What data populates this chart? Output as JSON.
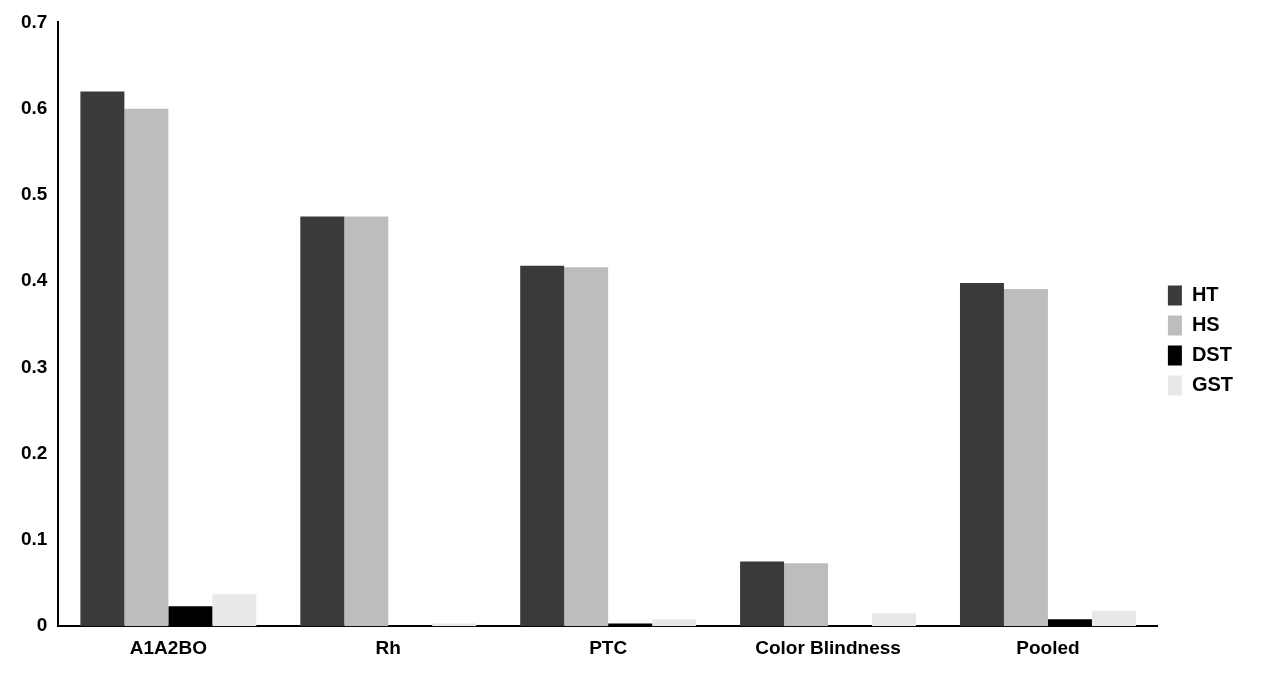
{
  "chart_data": {
    "type": "bar",
    "categories": [
      "A1A2BO",
      "Rh",
      "PTC",
      "Color Blindness",
      "Pooled"
    ],
    "series": [
      {
        "name": "HT",
        "color": "#3a3a3a",
        "values": [
          0.62,
          0.475,
          0.418,
          0.075,
          0.398
        ]
      },
      {
        "name": "HS",
        "color": "#bdbdbd",
        "values": [
          0.6,
          0.475,
          0.416,
          0.073,
          0.391
        ]
      },
      {
        "name": "DST",
        "color": "#000000",
        "values": [
          0.023,
          null,
          0.003,
          null,
          0.008
        ]
      },
      {
        "name": "GST",
        "color": "#e8e8e8",
        "values": [
          0.037,
          0.003,
          0.008,
          0.015,
          0.018
        ]
      }
    ],
    "ylim": [
      0,
      0.7
    ],
    "yticks": [
      0,
      0.1,
      0.2,
      0.3,
      0.4,
      0.5,
      0.6,
      0.7
    ],
    "grid": false,
    "legend": "right"
  }
}
